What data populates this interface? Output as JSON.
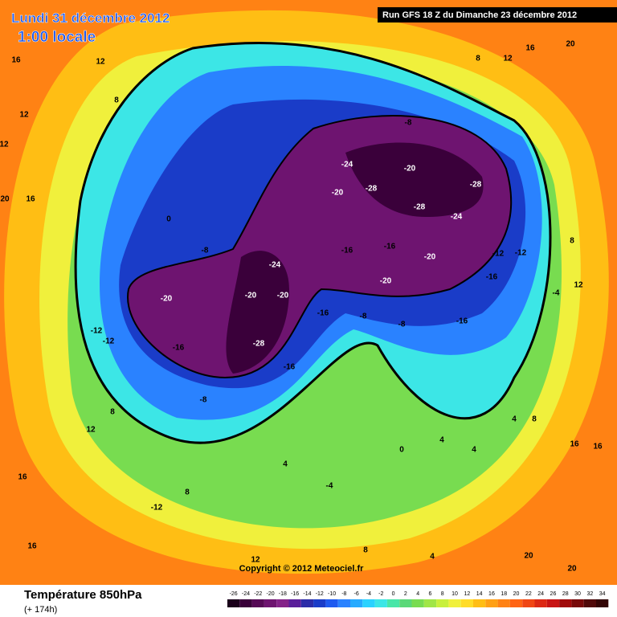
{
  "header": {
    "date": "Lundi 31 décembre 2012",
    "time": "1:00 locale",
    "run": "Run GFS 18 Z du Dimanche 23 décembre 2012",
    "copyright": "Copyright © 2012 Meteociel.fr"
  },
  "legend": {
    "title": "Température 850hPa",
    "lead": "(+ 174h)",
    "ticks": [
      -26,
      -24,
      -22,
      -20,
      -18,
      -16,
      -14,
      -12,
      -10,
      -8,
      -6,
      -4,
      -2,
      0,
      2,
      4,
      6,
      8,
      10,
      12,
      14,
      16,
      18,
      20,
      22,
      24,
      26,
      28,
      30,
      32,
      34
    ],
    "colors": [
      "#1a001a",
      "#3a003a",
      "#560a56",
      "#6e1470",
      "#842288",
      "#5a1e9a",
      "#2c2ca8",
      "#1a3cc8",
      "#1e5af0",
      "#2a82ff",
      "#26aaff",
      "#2ad2ff",
      "#3ce6e6",
      "#48e6a8",
      "#5ad878",
      "#78dc50",
      "#a0e646",
      "#c8f03c",
      "#f0f03c",
      "#ffdc28",
      "#ffbe14",
      "#ffa014",
      "#ff8214",
      "#ff6414",
      "#f04614",
      "#dc2814",
      "#c81414",
      "#a00a0a",
      "#780a0a",
      "#500a0a",
      "#320505"
    ]
  },
  "map_labels": [
    16,
    12,
    12,
    12,
    8,
    20,
    16,
    0,
    -8,
    -12,
    -12,
    -16,
    -20,
    -24,
    -28,
    -20,
    -20,
    -16,
    -8,
    -16,
    -8,
    -8,
    -16,
    -20,
    -24,
    -28,
    -28,
    -20,
    -24,
    -28,
    -16,
    -16,
    -20,
    -20,
    -16,
    -12,
    -12,
    -4,
    12,
    8,
    20,
    16,
    12,
    8,
    -8,
    12,
    8,
    16,
    -12,
    16,
    8,
    4,
    -4,
    0,
    4,
    4,
    20,
    20,
    12,
    8,
    4,
    16,
    16,
    4,
    8
  ]
}
